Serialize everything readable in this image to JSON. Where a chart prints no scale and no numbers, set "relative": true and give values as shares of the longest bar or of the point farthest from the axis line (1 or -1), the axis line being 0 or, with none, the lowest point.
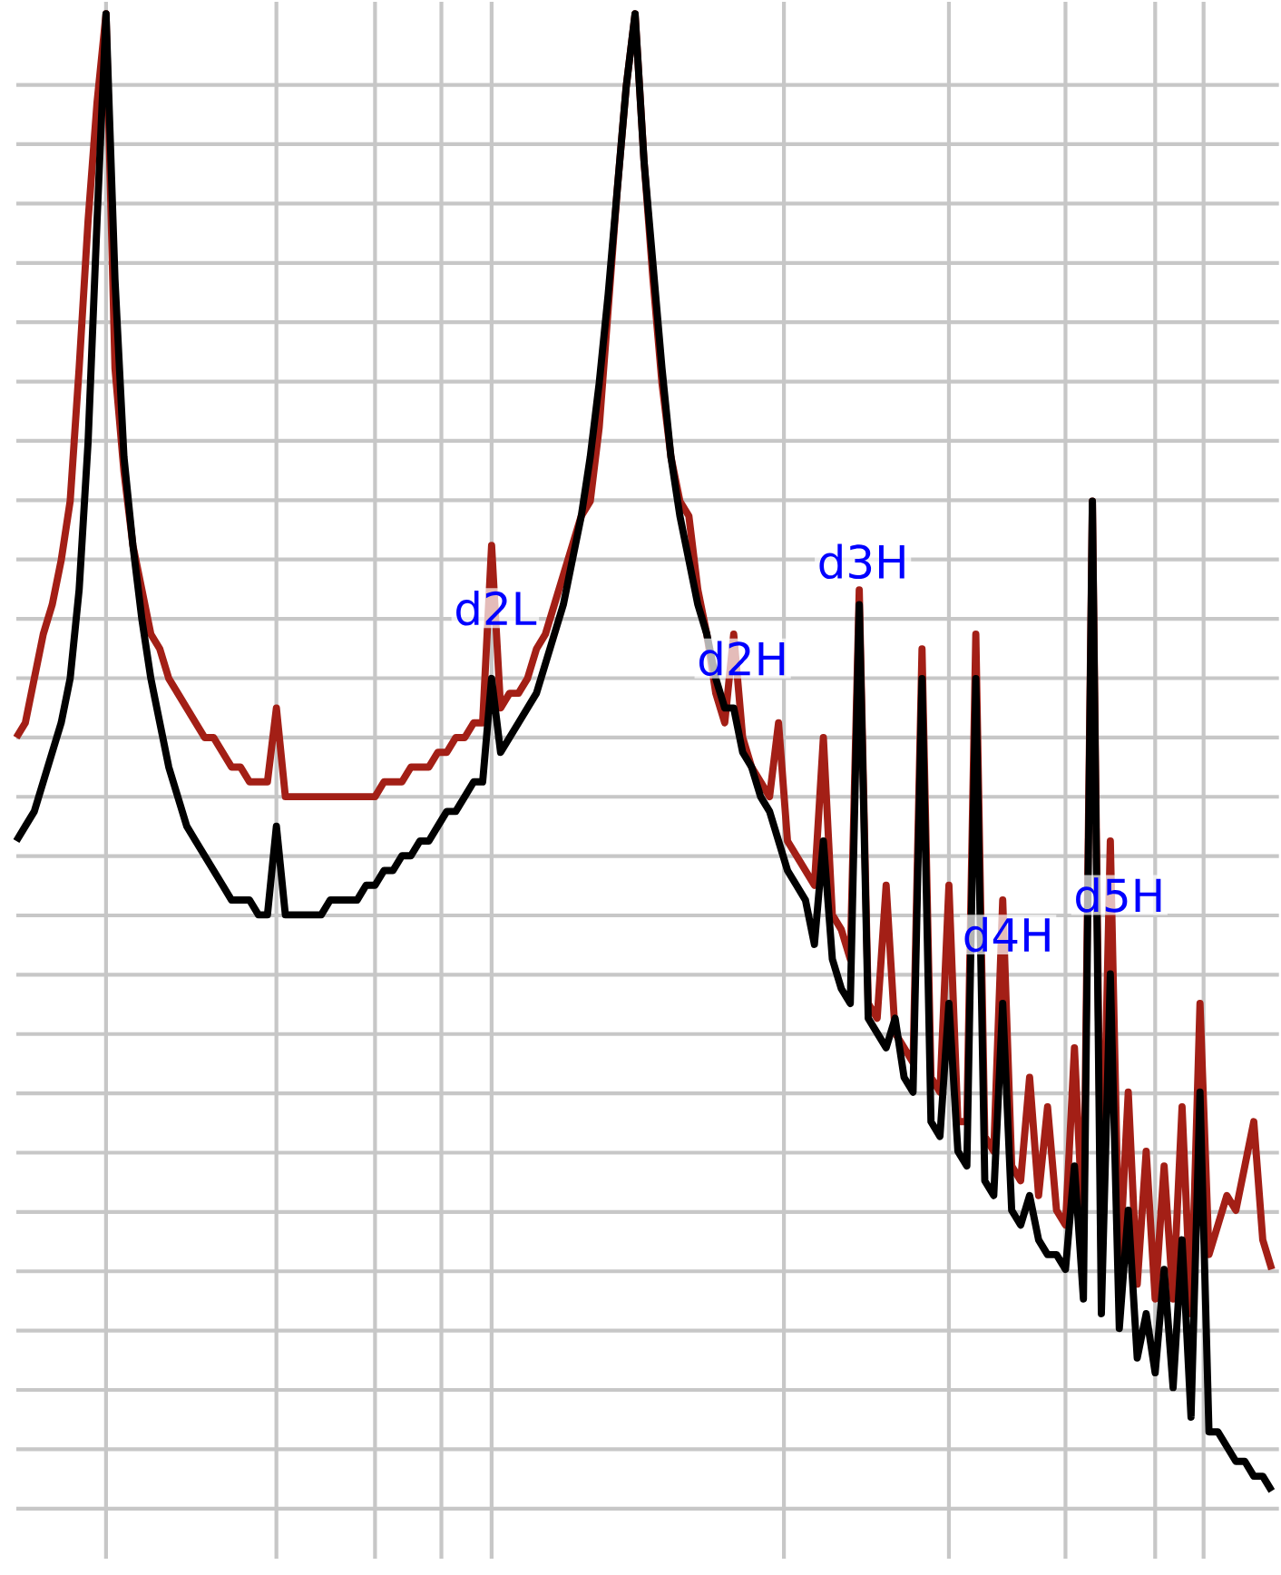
{
  "chart_data": {
    "type": "line",
    "relative": true,
    "grid": true,
    "marker": "none",
    "line_style": "solid",
    "categories": [
      null,
      null,
      null,
      null,
      null,
      null,
      null,
      null,
      null,
      null,
      null,
      null,
      null,
      null,
      null,
      null,
      null,
      null,
      null,
      null,
      null,
      null,
      null,
      null,
      null,
      null,
      null,
      null,
      null,
      null,
      null,
      null,
      null,
      null,
      null,
      null,
      null,
      null,
      null,
      null,
      null,
      null,
      null,
      null,
      null,
      null,
      null,
      null,
      null,
      null,
      null,
      null,
      null,
      null,
      null,
      null,
      null,
      null,
      null,
      null,
      null,
      null,
      null,
      null,
      null,
      null,
      null,
      null,
      null,
      null,
      null,
      null,
      null,
      null,
      null,
      null,
      null,
      null,
      null,
      null,
      null,
      null,
      null,
      null,
      null,
      null,
      null,
      null,
      null,
      null,
      null,
      null,
      null,
      null,
      null,
      null,
      null,
      null,
      null,
      null,
      null,
      null,
      null,
      null,
      null,
      null,
      null,
      null,
      null,
      null,
      null,
      null,
      null,
      null,
      null,
      null,
      null,
      null,
      null,
      null,
      null,
      null,
      null,
      null,
      null,
      null,
      null,
      null,
      null,
      null,
      null,
      null,
      null,
      null,
      null,
      null,
      null,
      null,
      null,
      null,
      null
    ],
    "series": [
      {
        "color": "#a31f16",
        "values": [
          0.51,
          0.52,
          0.55,
          0.58,
          0.6,
          0.63,
          0.67,
          0.76,
          0.86,
          0.94,
          1.0,
          0.76,
          0.69,
          0.64,
          0.61,
          0.58,
          0.57,
          0.55,
          0.54,
          0.53,
          0.52,
          0.51,
          0.51,
          0.5,
          0.49,
          0.49,
          0.48,
          0.48,
          0.48,
          0.53,
          0.47,
          0.47,
          0.47,
          0.47,
          0.47,
          0.47,
          0.47,
          0.47,
          0.47,
          0.47,
          0.47,
          0.48,
          0.48,
          0.48,
          0.49,
          0.49,
          0.49,
          0.5,
          0.5,
          0.51,
          0.51,
          0.52,
          0.52,
          0.64,
          0.53,
          0.54,
          0.54,
          0.55,
          0.57,
          0.58,
          0.6,
          0.62,
          0.64,
          0.66,
          0.67,
          0.72,
          0.8,
          0.88,
          0.95,
          1.0,
          0.9,
          0.82,
          0.75,
          0.7,
          0.67,
          0.66,
          0.61,
          0.58,
          0.54,
          0.52,
          0.58,
          0.51,
          0.49,
          0.48,
          0.47,
          0.52,
          0.44,
          0.43,
          0.42,
          0.41,
          0.51,
          0.39,
          0.38,
          0.36,
          0.61,
          0.33,
          0.32,
          0.41,
          0.31,
          0.3,
          0.29,
          0.57,
          0.28,
          0.27,
          0.41,
          0.25,
          0.25,
          0.58,
          0.24,
          0.23,
          0.4,
          0.22,
          0.21,
          0.28,
          0.2,
          0.26,
          0.19,
          0.18,
          0.3,
          0.17,
          0.67,
          0.16,
          0.44,
          0.15,
          0.27,
          0.14,
          0.23,
          0.13,
          0.22,
          0.13,
          0.26,
          0.12,
          0.33,
          0.16,
          0.18,
          0.2,
          0.19,
          0.22,
          0.25,
          0.17,
          0.15
        ]
      },
      {
        "color": "#000000",
        "values": [
          0.44,
          0.45,
          0.46,
          0.48,
          0.5,
          0.52,
          0.55,
          0.61,
          0.71,
          0.86,
          1.0,
          0.82,
          0.7,
          0.64,
          0.59,
          0.55,
          0.52,
          0.49,
          0.47,
          0.45,
          0.44,
          0.43,
          0.42,
          0.41,
          0.4,
          0.4,
          0.4,
          0.39,
          0.39,
          0.45,
          0.39,
          0.39,
          0.39,
          0.39,
          0.39,
          0.4,
          0.4,
          0.4,
          0.4,
          0.41,
          0.41,
          0.42,
          0.42,
          0.43,
          0.43,
          0.44,
          0.44,
          0.45,
          0.46,
          0.46,
          0.47,
          0.48,
          0.48,
          0.55,
          0.5,
          0.51,
          0.52,
          0.53,
          0.54,
          0.56,
          0.58,
          0.6,
          0.63,
          0.66,
          0.7,
          0.75,
          0.81,
          0.88,
          0.95,
          1.0,
          0.9,
          0.83,
          0.76,
          0.7,
          0.66,
          0.63,
          0.6,
          0.58,
          0.55,
          0.53,
          0.53,
          0.5,
          0.49,
          0.47,
          0.46,
          0.44,
          0.42,
          0.41,
          0.4,
          0.37,
          0.44,
          0.36,
          0.34,
          0.33,
          0.6,
          0.32,
          0.31,
          0.3,
          0.32,
          0.28,
          0.27,
          0.55,
          0.25,
          0.24,
          0.33,
          0.23,
          0.22,
          0.55,
          0.21,
          0.2,
          0.33,
          0.19,
          0.18,
          0.2,
          0.17,
          0.16,
          0.16,
          0.15,
          0.22,
          0.13,
          0.67,
          0.12,
          0.35,
          0.11,
          0.19,
          0.09,
          0.12,
          0.08,
          0.15,
          0.07,
          0.17,
          0.05,
          0.27,
          0.04,
          0.04,
          0.03,
          0.02,
          0.02,
          0.01,
          0.01,
          0.0
        ]
      }
    ],
    "annotations": [
      "d2L",
      "d2H",
      "d3H",
      "d4H",
      "d5H"
    ]
  }
}
